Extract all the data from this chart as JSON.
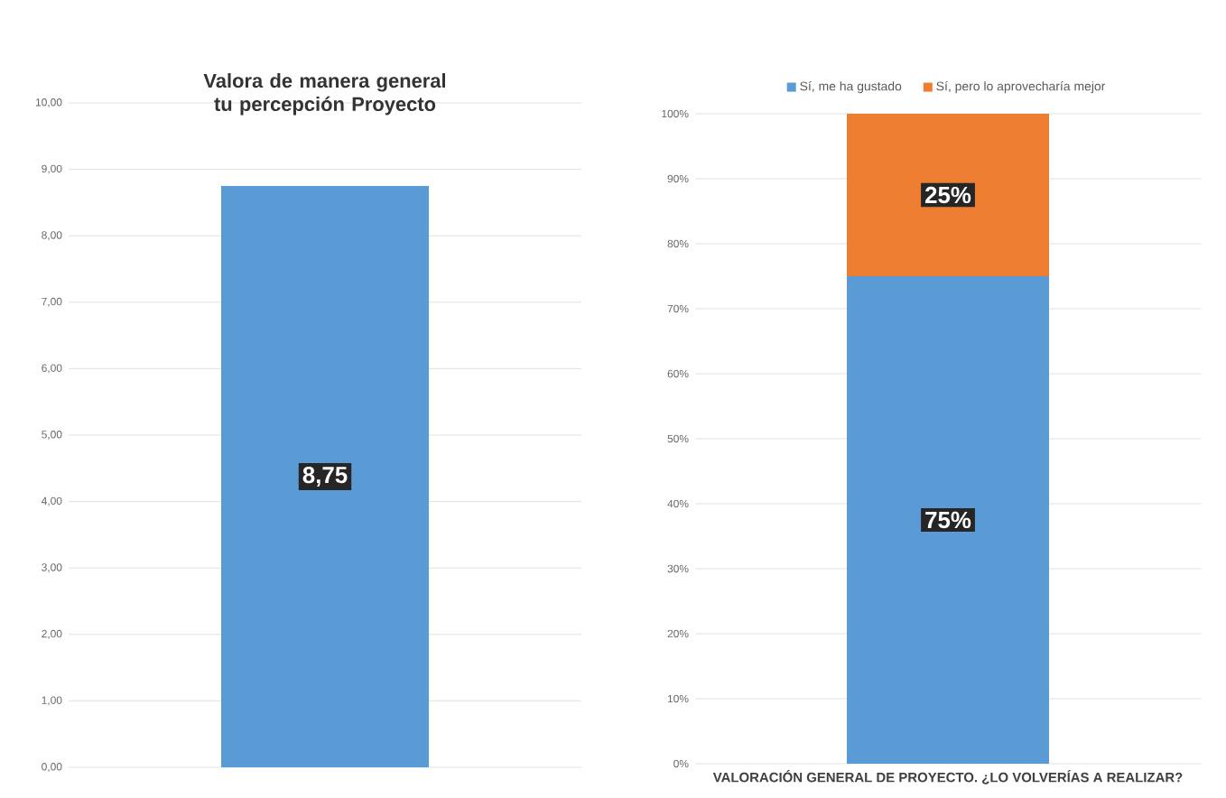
{
  "chart_data": [
    {
      "type": "bar",
      "title": "Valora de manera general tu percepción Proyecto",
      "categories": [
        null
      ],
      "values": [
        8.75
      ],
      "value_labels": [
        "8,75"
      ],
      "color": "#5b9bd5",
      "ylim": [
        0,
        10
      ],
      "yticks": [
        {
          "value": 0,
          "label": "0,00"
        },
        {
          "value": 1,
          "label": "1,00"
        },
        {
          "value": 2,
          "label": "2,00"
        },
        {
          "value": 3,
          "label": "3,00"
        },
        {
          "value": 4,
          "label": "4,00"
        },
        {
          "value": 5,
          "label": "5,00"
        },
        {
          "value": 6,
          "label": "6,00"
        },
        {
          "value": 7,
          "label": "7,00"
        },
        {
          "value": 8,
          "label": "8,00"
        },
        {
          "value": 9,
          "label": "9,00"
        },
        {
          "value": 10,
          "label": "10,00"
        }
      ],
      "grid": "y"
    },
    {
      "type": "bar",
      "stacked": true,
      "categories": [
        "VALORACIÓN GENERAL DE PROYECTO. ¿LO VOLVERÍAS A REALIZAR?"
      ],
      "series": [
        {
          "name": "Sí, me ha gustado",
          "color": "#5b9bd5",
          "values": [
            75
          ],
          "value_labels": [
            "75%"
          ]
        },
        {
          "name": "Sí, pero lo aprovecharía mejor",
          "color": "#ed7d31",
          "values": [
            25
          ],
          "value_labels": [
            "25%"
          ]
        }
      ],
      "ylim": [
        0,
        100
      ],
      "yticks": [
        {
          "value": 0,
          "label": "0%"
        },
        {
          "value": 10,
          "label": "10%"
        },
        {
          "value": 20,
          "label": "20%"
        },
        {
          "value": 30,
          "label": "30%"
        },
        {
          "value": 40,
          "label": "40%"
        },
        {
          "value": 50,
          "label": "50%"
        },
        {
          "value": 60,
          "label": "60%"
        },
        {
          "value": 70,
          "label": "70%"
        },
        {
          "value": 80,
          "label": "80%"
        },
        {
          "value": 90,
          "label": "90%"
        },
        {
          "value": 100,
          "label": "100%"
        }
      ],
      "grid": "y",
      "legend": "top"
    }
  ]
}
